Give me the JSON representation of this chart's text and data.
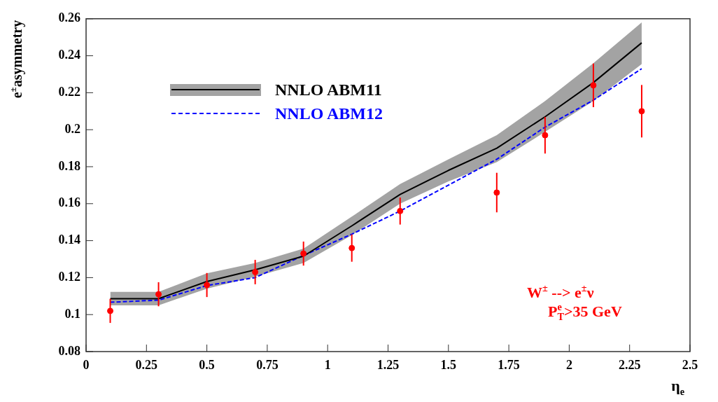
{
  "chart_data": {
    "type": "line",
    "xlabel": "η$_{e}$",
    "ylabel": "e$^{±}$asymmetry",
    "xlim": [
      0,
      2.5
    ],
    "xticks": [
      0,
      0.25,
      0.5,
      0.75,
      1,
      1.25,
      1.5,
      1.75,
      2,
      2.25,
      2.5
    ],
    "ylim": [
      0.08,
      0.26
    ],
    "yticks": [
      0.08,
      0.1,
      0.12,
      0.14,
      0.16,
      0.18,
      0.2,
      0.22,
      0.24,
      0.26
    ],
    "series": [
      {
        "name": "NNLO ABM11",
        "color": "#000000",
        "line_style": "solid",
        "x": [
          0.1,
          0.3,
          0.5,
          0.7,
          0.9,
          1.1,
          1.3,
          1.5,
          1.7,
          1.9,
          2.1,
          2.3
        ],
        "values": [
          0.1086,
          0.1086,
          0.1179,
          0.1242,
          0.1316,
          0.148,
          0.165,
          0.178,
          0.19,
          0.207,
          0.2255,
          0.247
        ],
        "lower": [
          0.105,
          0.105,
          0.114,
          0.1205,
          0.1279,
          0.143,
          0.16,
          0.172,
          0.1825,
          0.1988,
          0.2155,
          0.2355
        ],
        "upper": [
          0.1123,
          0.1123,
          0.1223,
          0.1279,
          0.1357,
          0.153,
          0.1706,
          0.184,
          0.197,
          0.2155,
          0.236,
          0.258
        ]
      },
      {
        "name": "NNLO ABM12",
        "color": "#0000ff",
        "line_style": "dashed",
        "x": [
          0.1,
          0.3,
          0.5,
          0.7,
          0.9,
          1.1,
          1.3,
          1.5,
          1.7,
          1.9,
          2.1,
          2.3
        ],
        "values": [
          0.1067,
          0.1078,
          0.1157,
          0.12,
          0.132,
          0.1435,
          0.156,
          0.17,
          0.184,
          0.2014,
          0.216,
          0.233
        ]
      },
      {
        "type": "scatter",
        "color": "#ff0000",
        "marker": "circle",
        "x": [
          0.1,
          0.3,
          0.5,
          0.7,
          0.9,
          1.1,
          1.3,
          1.7,
          1.9,
          2.1,
          2.3
        ],
        "values": [
          0.102,
          0.111,
          0.116,
          0.123,
          0.133,
          0.136,
          0.156,
          0.166,
          0.197,
          0.224,
          0.21
        ],
        "errors": [
          0.0065,
          0.0065,
          0.0065,
          0.0066,
          0.0065,
          0.0074,
          0.0073,
          0.0107,
          0.0099,
          0.0118,
          0.0142
        ]
      }
    ],
    "legend": "top left",
    "annotations": [
      "W$^{±}$ --> e$^{±}$ν",
      "P$^{e}$$_{T}$>35 GeV"
    ]
  }
}
